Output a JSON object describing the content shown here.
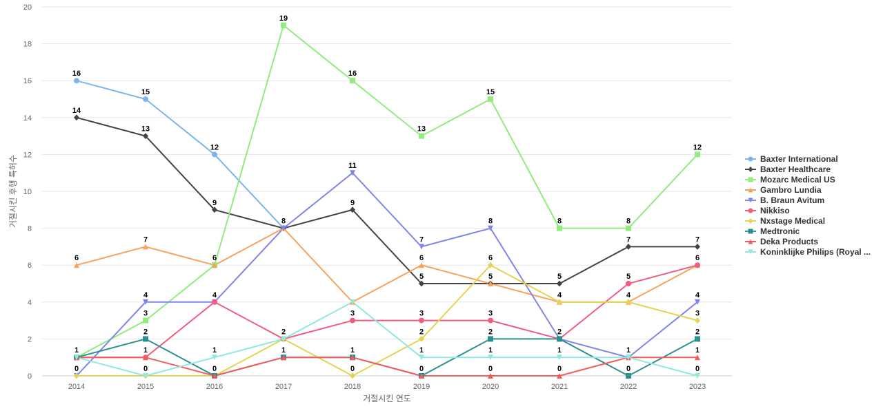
{
  "chart_data": {
    "type": "line",
    "xlabel": "거절시킨 연도",
    "ylabel": "거절시킨 후행 특허수",
    "x": [
      "2014",
      "2015",
      "2016",
      "2017",
      "2018",
      "2019",
      "2020",
      "2021",
      "2022",
      "2023"
    ],
    "yticks": [
      "0",
      "2",
      "4",
      "6",
      "8",
      "10",
      "12",
      "14",
      "16",
      "18",
      "20"
    ],
    "ylim": [
      0,
      20
    ],
    "grid": true,
    "legend_position": "right",
    "series": [
      {
        "name": "Baxter International",
        "color": "#7cb5ec",
        "marker": "circle",
        "values": [
          16,
          15,
          12,
          8,
          null,
          null,
          null,
          null,
          null,
          null
        ]
      },
      {
        "name": "Baxter Healthcare",
        "color": "#434348",
        "marker": "diamond",
        "values": [
          14,
          13,
          9,
          8,
          9,
          5,
          5,
          5,
          7,
          7
        ]
      },
      {
        "name": "Mozarc Medical US",
        "color": "#90ed7d",
        "marker": "square",
        "values": [
          1,
          3,
          6,
          19,
          16,
          13,
          15,
          8,
          8,
          12
        ]
      },
      {
        "name": "Gambro Lundia",
        "color": "#f7a35c",
        "marker": "triangle",
        "values": [
          6,
          7,
          6,
          8,
          4,
          6,
          5,
          4,
          4,
          6
        ]
      },
      {
        "name": "B. Braun Avitum",
        "color": "#8085e9",
        "marker": "triangle-down",
        "values": [
          0,
          4,
          4,
          8,
          11,
          7,
          8,
          2,
          1,
          4
        ]
      },
      {
        "name": "Nikkiso",
        "color": "#f15c80",
        "marker": "circle",
        "values": [
          1,
          1,
          4,
          2,
          3,
          3,
          3,
          2,
          5,
          6
        ]
      },
      {
        "name": "Nxstage Medical",
        "color": "#e4d354",
        "marker": "diamond",
        "values": [
          0,
          0,
          0,
          2,
          0,
          2,
          6,
          4,
          4,
          3
        ]
      },
      {
        "name": "Medtronic",
        "color": "#2b908f",
        "marker": "square",
        "values": [
          1,
          2,
          0,
          1,
          1,
          0,
          2,
          2,
          0,
          2
        ]
      },
      {
        "name": "Deka Products",
        "color": "#f45b5b",
        "marker": "triangle",
        "values": [
          1,
          1,
          0,
          1,
          1,
          0,
          0,
          0,
          1,
          1
        ]
      },
      {
        "name": "Koninklijke Philips (Royal ...",
        "color": "#91e8e1",
        "marker": "triangle-down",
        "values": [
          1,
          0,
          1,
          2,
          4,
          1,
          1,
          1,
          1,
          0
        ]
      }
    ],
    "data_labels": [
      {
        "series": 0,
        "index": 0,
        "text": "16"
      },
      {
        "series": 0,
        "index": 1,
        "text": "15"
      },
      {
        "series": 0,
        "index": 2,
        "text": "12"
      },
      {
        "series": 1,
        "index": 0,
        "text": "14"
      },
      {
        "series": 1,
        "index": 1,
        "text": "13"
      },
      {
        "series": 1,
        "index": 2,
        "text": "9"
      },
      {
        "series": 1,
        "index": 4,
        "text": "9"
      },
      {
        "series": 1,
        "index": 5,
        "text": "5"
      },
      {
        "series": 1,
        "index": 7,
        "text": "5"
      },
      {
        "series": 1,
        "index": 8,
        "text": "7"
      },
      {
        "series": 1,
        "index": 9,
        "text": "7"
      },
      {
        "series": 2,
        "index": 0,
        "text": "1"
      },
      {
        "series": 2,
        "index": 1,
        "text": "3"
      },
      {
        "series": 2,
        "index": 3,
        "text": "19"
      },
      {
        "series": 2,
        "index": 4,
        "text": "16"
      },
      {
        "series": 2,
        "index": 5,
        "text": "13"
      },
      {
        "series": 2,
        "index": 6,
        "text": "15"
      },
      {
        "series": 2,
        "index": 7,
        "text": "8"
      },
      {
        "series": 2,
        "index": 8,
        "text": "8"
      },
      {
        "series": 2,
        "index": 9,
        "text": "12"
      },
      {
        "series": 3,
        "index": 0,
        "text": "6"
      },
      {
        "series": 3,
        "index": 1,
        "text": "7"
      },
      {
        "series": 3,
        "index": 2,
        "text": "6"
      },
      {
        "series": 3,
        "index": 3,
        "text": "8"
      },
      {
        "series": 3,
        "index": 5,
        "text": "6"
      },
      {
        "series": 3,
        "index": 6,
        "text": "5"
      },
      {
        "series": 3,
        "index": 7,
        "text": "4"
      },
      {
        "series": 3,
        "index": 9,
        "text": "6"
      },
      {
        "series": 4,
        "index": 1,
        "text": "4"
      },
      {
        "series": 4,
        "index": 2,
        "text": "4"
      },
      {
        "series": 4,
        "index": 4,
        "text": "11"
      },
      {
        "series": 4,
        "index": 5,
        "text": "7"
      },
      {
        "series": 4,
        "index": 6,
        "text": "8"
      },
      {
        "series": 4,
        "index": 9,
        "text": "4"
      },
      {
        "series": 5,
        "index": 1,
        "text": "1"
      },
      {
        "series": 5,
        "index": 4,
        "text": "3"
      },
      {
        "series": 5,
        "index": 5,
        "text": "3"
      },
      {
        "series": 5,
        "index": 6,
        "text": "3"
      },
      {
        "series": 5,
        "index": 7,
        "text": "2"
      },
      {
        "series": 5,
        "index": 8,
        "text": "5"
      },
      {
        "series": 6,
        "index": 0,
        "text": "0"
      },
      {
        "series": 6,
        "index": 1,
        "text": "0"
      },
      {
        "series": 6,
        "index": 2,
        "text": "0"
      },
      {
        "series": 6,
        "index": 3,
        "text": "2"
      },
      {
        "series": 6,
        "index": 4,
        "text": "0"
      },
      {
        "series": 6,
        "index": 5,
        "text": "2"
      },
      {
        "series": 6,
        "index": 6,
        "text": "6"
      },
      {
        "series": 6,
        "index": 8,
        "text": "4"
      },
      {
        "series": 6,
        "index": 9,
        "text": "3"
      },
      {
        "series": 7,
        "index": 1,
        "text": "2"
      },
      {
        "series": 7,
        "index": 6,
        "text": "2"
      },
      {
        "series": 7,
        "index": 8,
        "text": "0"
      },
      {
        "series": 7,
        "index": 9,
        "text": "2"
      },
      {
        "series": 8,
        "index": 3,
        "text": "1"
      },
      {
        "series": 8,
        "index": 4,
        "text": "1"
      },
      {
        "series": 8,
        "index": 5,
        "text": "0"
      },
      {
        "series": 8,
        "index": 6,
        "text": "0"
      },
      {
        "series": 8,
        "index": 7,
        "text": "0"
      },
      {
        "series": 8,
        "index": 9,
        "text": "1"
      },
      {
        "series": 9,
        "index": 2,
        "text": "1"
      },
      {
        "series": 9,
        "index": 5,
        "text": "1"
      },
      {
        "series": 9,
        "index": 6,
        "text": "1"
      },
      {
        "series": 9,
        "index": 7,
        "text": "1"
      },
      {
        "series": 9,
        "index": 8,
        "text": "1"
      },
      {
        "series": 9,
        "index": 9,
        "text": "0"
      }
    ]
  }
}
